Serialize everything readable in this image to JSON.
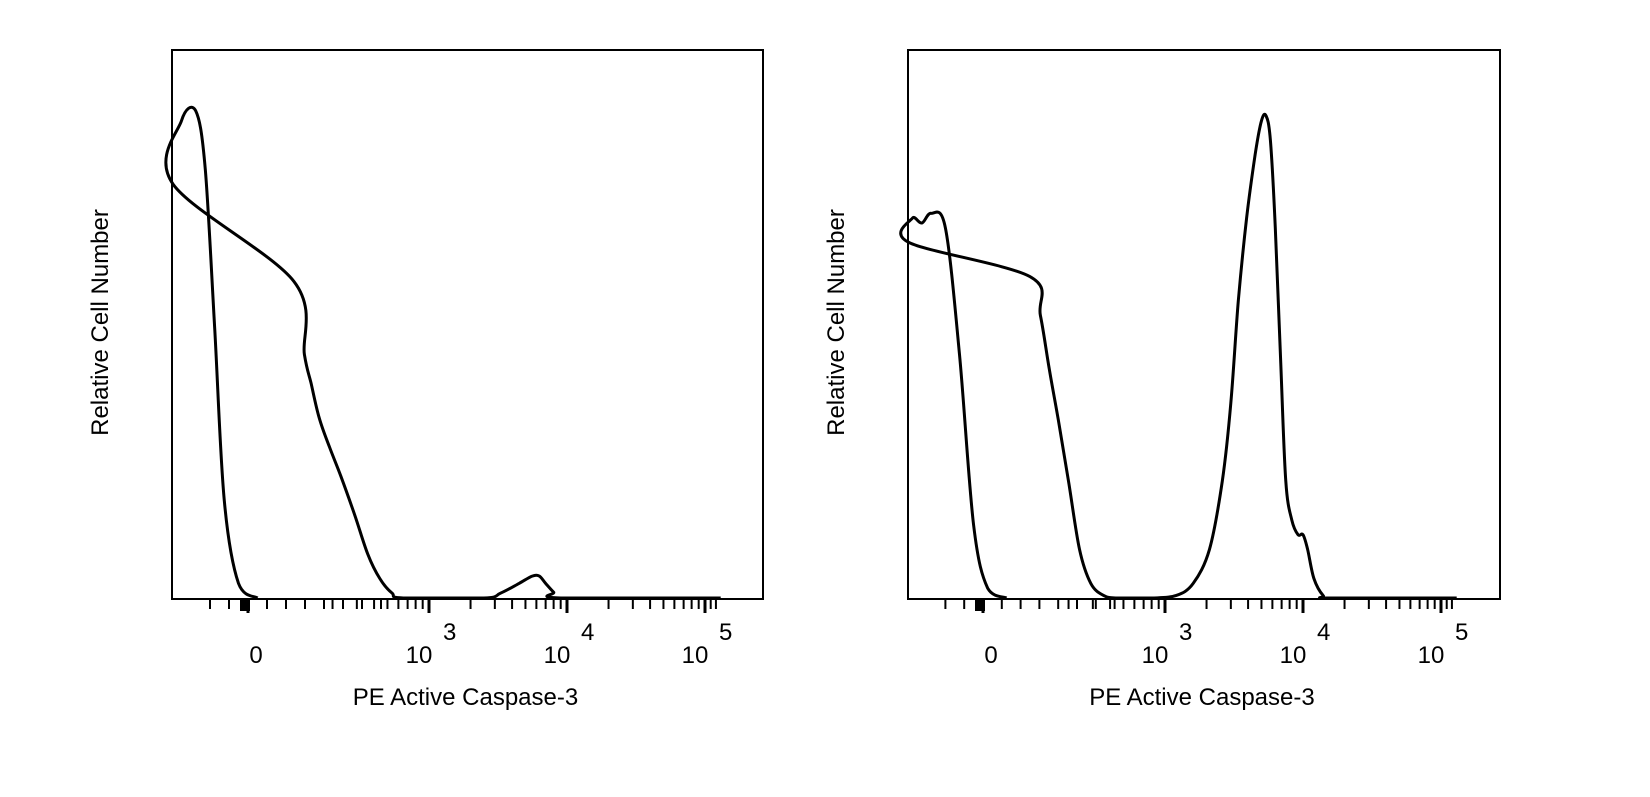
{
  "chart_data": [
    {
      "type": "area",
      "subtype": "flow-cytometry-histogram",
      "xlabel": "PE Active Caspase-3",
      "ylabel": "Relative Cell Number",
      "x_scale": "biexponential",
      "xlim": [
        -150,
        130000
      ],
      "ylim": [
        0,
        1
      ],
      "grid": false,
      "legend": "none",
      "x_ticks": [
        {
          "value": 0,
          "base": "0",
          "exp": ""
        },
        {
          "value": 1000,
          "base": "10",
          "exp": "3"
        },
        {
          "value": 10000,
          "base": "10",
          "exp": "4"
        },
        {
          "value": 100000,
          "base": "10",
          "exp": "5"
        }
      ],
      "series": [
        {
          "points": [
            [
              -10,
              0
            ],
            [
              10,
              0.03
            ],
            [
              25,
              0.2
            ],
            [
              35,
              0.55
            ],
            [
              45,
              0.88
            ],
            [
              55,
              1.0
            ],
            [
              70,
              0.98
            ],
            [
              85,
              0.85
            ],
            [
              105,
              0.65
            ],
            [
              125,
              0.5
            ],
            [
              140,
              0.44
            ],
            [
              160,
              0.37
            ],
            [
              190,
              0.31
            ],
            [
              230,
              0.25
            ],
            [
              290,
              0.17
            ],
            [
              360,
              0.09
            ],
            [
              440,
              0.04
            ],
            [
              540,
              0.01
            ],
            [
              650,
              0.0
            ],
            [
              2500,
              0.0
            ],
            [
              3300,
              0.01
            ],
            [
              4500,
              0.03
            ],
            [
              5600,
              0.045
            ],
            [
              6300,
              0.045
            ],
            [
              7000,
              0.03
            ],
            [
              8000,
              0.012
            ],
            [
              9000,
              0.0
            ],
            [
              130000,
              0.0
            ]
          ]
        }
      ]
    },
    {
      "type": "area",
      "subtype": "flow-cytometry-histogram",
      "xlabel": "PE Active Caspase-3",
      "ylabel": "Relative Cell Number",
      "x_scale": "biexponential",
      "xlim": [
        -150,
        130000
      ],
      "ylim": [
        0,
        1
      ],
      "grid": false,
      "legend": "none",
      "x_ticks": [
        {
          "value": 0,
          "base": "0",
          "exp": ""
        },
        {
          "value": 1000,
          "base": "10",
          "exp": "3"
        },
        {
          "value": 10000,
          "base": "10",
          "exp": "4"
        },
        {
          "value": 100000,
          "base": "10",
          "exp": "5"
        }
      ],
      "series": [
        {
          "points": [
            [
              -25,
              0
            ],
            [
              -5,
              0.02
            ],
            [
              10,
              0.15
            ],
            [
              25,
              0.5
            ],
            [
              40,
              0.76
            ],
            [
              55,
              0.79
            ],
            [
              65,
              0.77
            ],
            [
              75,
              0.78
            ],
            [
              90,
              0.73
            ],
            [
              105,
              0.66
            ],
            [
              125,
              0.58
            ],
            [
              145,
              0.47
            ],
            [
              170,
              0.36
            ],
            [
              200,
              0.24
            ],
            [
              240,
              0.1
            ],
            [
              290,
              0.03
            ],
            [
              360,
              0.005
            ],
            [
              450,
              0.0
            ],
            [
              800,
              0.0
            ],
            [
              1200,
              0.005
            ],
            [
              1600,
              0.03
            ],
            [
              2100,
              0.1
            ],
            [
              2600,
              0.24
            ],
            [
              3000,
              0.4
            ],
            [
              3400,
              0.61
            ],
            [
              3900,
              0.78
            ],
            [
              4500,
              0.91
            ],
            [
              5000,
              0.98
            ],
            [
              5400,
              0.99
            ],
            [
              5800,
              0.94
            ],
            [
              6300,
              0.76
            ],
            [
              6900,
              0.48
            ],
            [
              7500,
              0.24
            ],
            [
              8300,
              0.16
            ],
            [
              9200,
              0.13
            ],
            [
              10000,
              0.13
            ],
            [
              10800,
              0.1
            ],
            [
              12000,
              0.04
            ],
            [
              14000,
              0.005
            ],
            [
              16000,
              0.0
            ],
            [
              130000,
              0.0
            ]
          ]
        }
      ]
    }
  ]
}
